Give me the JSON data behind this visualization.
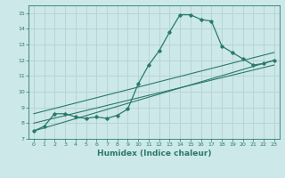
{
  "xlabel": "Humidex (Indice chaleur)",
  "ylabel": "",
  "bg_color": "#cce8e8",
  "grid_color": "#b8d4d4",
  "line_color": "#2a7a6a",
  "xlim": [
    -0.5,
    23.5
  ],
  "ylim": [
    7,
    15.5
  ],
  "yticks": [
    7,
    8,
    9,
    10,
    11,
    12,
    13,
    14,
    15
  ],
  "xticks": [
    0,
    1,
    2,
    3,
    4,
    5,
    6,
    7,
    8,
    9,
    10,
    11,
    12,
    13,
    14,
    15,
    16,
    17,
    18,
    19,
    20,
    21,
    22,
    23
  ],
  "line1_x": [
    0,
    1,
    2,
    3,
    4,
    5,
    6,
    7,
    8,
    9,
    10,
    11,
    12,
    13,
    14,
    15,
    16,
    17,
    18,
    19,
    20,
    21,
    22,
    23
  ],
  "line1_y": [
    7.5,
    7.8,
    8.6,
    8.6,
    8.4,
    8.3,
    8.4,
    8.3,
    8.5,
    8.9,
    10.5,
    11.7,
    12.6,
    13.8,
    14.9,
    14.9,
    14.6,
    14.5,
    12.9,
    12.5,
    12.1,
    11.7,
    11.8,
    12.0
  ],
  "line2_x": [
    0,
    23
  ],
  "line2_y": [
    7.5,
    12.0
  ],
  "line3_x": [
    0,
    23
  ],
  "line3_y": [
    8.6,
    12.5
  ],
  "line4_x": [
    0,
    23
  ],
  "line4_y": [
    8.0,
    11.7
  ]
}
